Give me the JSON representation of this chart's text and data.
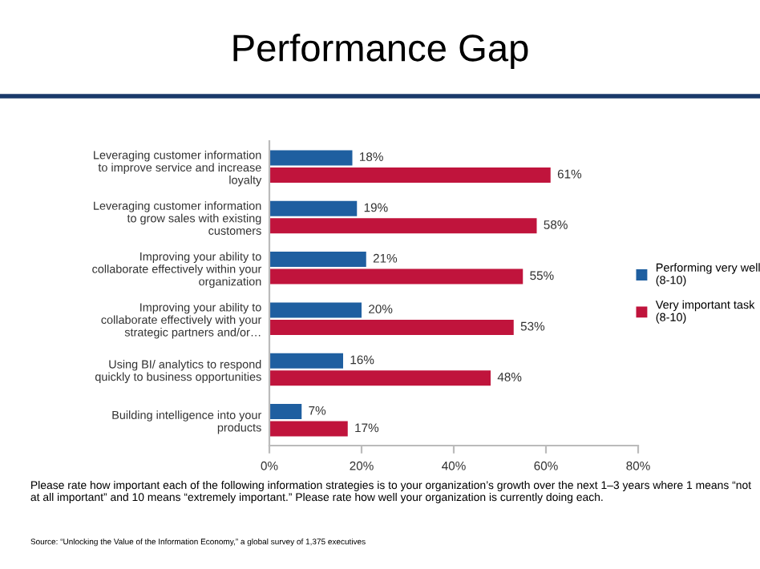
{
  "chart_data": {
    "type": "bar",
    "orientation": "horizontal",
    "title": "Performance Gap",
    "categories": [
      "Leveraging customer information\nto improve service and increase\nloyalty",
      "Leveraging customer information\nto grow sales with existing\ncustomers",
      "Improving your ability to\ncollaborate effectively within your\norganization",
      "Improving your ability to\ncollaborate effectively with your\nstrategic partners and/or…",
      "Using BI/ analytics to respond\nquickly to business opportunities",
      "Building intelligence into your\nproducts"
    ],
    "series": [
      {
        "name": "Performing very well\n(8-10)",
        "color": "#1f5fa0",
        "values": [
          18,
          19,
          21,
          20,
          16,
          7
        ],
        "value_labels": [
          "18%",
          "19%",
          "21%",
          "20%",
          "16%",
          "7%"
        ]
      },
      {
        "name": "Very important task\n(8-10)",
        "color": "#c0143c",
        "values": [
          61,
          58,
          55,
          53,
          48,
          17
        ],
        "value_labels": [
          "61%",
          "58%",
          "55%",
          "53%",
          "48%",
          "17%"
        ]
      }
    ],
    "xlim": [
      0,
      80
    ],
    "xticks": [
      {
        "value": 0,
        "label": "0%"
      },
      {
        "value": 20,
        "label": "20%"
      },
      {
        "value": 40,
        "label": "40%"
      },
      {
        "value": 60,
        "label": "60%"
      },
      {
        "value": 80,
        "label": "80%"
      }
    ],
    "legend": "right",
    "grid": false,
    "annotations": [
      "Please rate how important each of the following information strategies is to your organization’s growth over the next 1–3 years where 1 means “not at all important” and 10 means “extremely important.” Please rate how well your organization is currently doing each.",
      "Source: “Unlocking the Value of the Information Economy,” a global survey of 1,375 executives"
    ]
  }
}
